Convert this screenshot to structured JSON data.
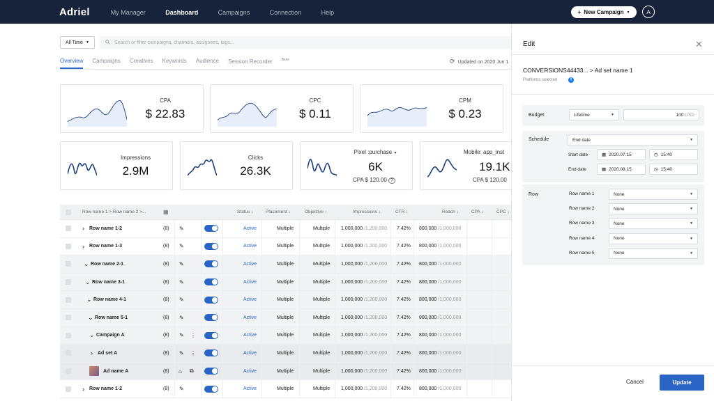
{
  "app": {
    "logo": "Adriel",
    "nav": [
      "My Manager",
      "Dashboard",
      "Campaigns",
      "Connection",
      "Help"
    ],
    "new_campaign": "New Campaign",
    "avatar": "A"
  },
  "filters": {
    "time": "All Time",
    "search_placeholder": "Search or filter campaigns, channels, assignees, tags..."
  },
  "tabs": [
    "Overview",
    "Campaigns",
    "Creatives",
    "Keywords",
    "Audience",
    "Session Recorder"
  ],
  "tab_beta": "Beta",
  "updated": "Updated on 2020 Jun 1",
  "metrics_top": [
    {
      "label": "CPA",
      "value": "$ 22.83"
    },
    {
      "label": "CPC",
      "value": "$ 0.11"
    },
    {
      "label": "CPM",
      "value": "$ 0.23"
    }
  ],
  "metrics_bottom": [
    {
      "label": "Impressions",
      "value": "2.9M"
    },
    {
      "label": "Clicks",
      "value": "26.3K"
    },
    {
      "label": "Pixel :purchase",
      "value": "6K",
      "sub": "CPA  $ 120.00"
    },
    {
      "label": "Mobile: app_inst",
      "value": "19.1K",
      "sub": "CPA  $ 120.00"
    }
  ],
  "table": {
    "header": {
      "name": "Row name 1 > Row name 2 >...",
      "status": "Status",
      "placement": "Placement",
      "objective": "Objective",
      "impressions": "Impressions",
      "ctr": "CTR",
      "reach": "Reach",
      "cpa": "CPA",
      "cpc": "CPC"
    },
    "rows": [
      {
        "name": "Row name 1-2",
        "count": "(8)",
        "status": "Active",
        "placement": "Multiple",
        "objective": "Multiple",
        "imp": "1,000,000",
        "imp_total": "/1,200,000",
        "ctr": "7.42%",
        "reach": "800,000",
        "reach_total": "/1,000,000"
      },
      {
        "name": "Row name 1-3",
        "count": "(8)",
        "status": "Active",
        "placement": "Multiple",
        "objective": "Multiple",
        "imp": "1,000,000",
        "imp_total": "/1,200,000",
        "ctr": "7.42%",
        "reach": "800,000",
        "reach_total": "/1,000,000"
      },
      {
        "name": "Row name 2-1",
        "count": "(8)",
        "status": "Active",
        "placement": "Multiple",
        "objective": "Multiple",
        "imp": "1,000,000",
        "imp_total": "/1,200,000",
        "ctr": "7.42%",
        "reach": "800,000",
        "reach_total": "/1,000,000"
      },
      {
        "name": "Row name 3-1",
        "count": "(8)",
        "status": "Active",
        "placement": "Multiple",
        "objective": "Multiple",
        "imp": "1,000,000",
        "imp_total": "/1,200,000",
        "ctr": "7.42%",
        "reach": "800,000",
        "reach_total": "/1,000,000"
      },
      {
        "name": "Row name 4-1",
        "count": "(8)",
        "status": "Active",
        "placement": "Multiple",
        "objective": "Multiple",
        "imp": "1,000,000",
        "imp_total": "/1,200,000",
        "ctr": "7.42%",
        "reach": "800,000",
        "reach_total": "/1,000,000"
      },
      {
        "name": "Row name 5-1",
        "count": "(8)",
        "status": "Active",
        "placement": "Multiple",
        "objective": "Multiple",
        "imp": "1,000,000",
        "imp_total": "/1,200,000",
        "ctr": "7.42%",
        "reach": "800,000",
        "reach_total": "/1,000,000"
      },
      {
        "name": "Campaign A",
        "count": "(8)",
        "status": "Active",
        "placement": "Multiple",
        "objective": "Multiple",
        "imp": "1,000,000",
        "imp_total": "/1,200,000",
        "ctr": "7.42%",
        "reach": "800,000",
        "reach_total": "/1,000,000"
      },
      {
        "name": "Ad set A",
        "count": "(8)",
        "status": "Active",
        "placement": "Multiple",
        "objective": "Multiple",
        "imp": "1,000,000",
        "imp_total": "/1,200,000",
        "ctr": "7.42%",
        "reach": "800,000",
        "reach_total": "/1,000,000"
      },
      {
        "name": "Ad name A",
        "count": "(8)",
        "status": "Active",
        "placement": "Multiple",
        "objective": "Multiple",
        "imp": "1,000,000",
        "imp_total": "/1,200,000",
        "ctr": "7.42%",
        "reach": "800,000",
        "reach_total": "/1,000,000"
      },
      {
        "name": "Row name 1-2",
        "count": "(8)",
        "status": "Active",
        "placement": "Multiple",
        "objective": "Multiple",
        "imp": "1,000,000",
        "imp_total": "/1,200,000",
        "ctr": "7.42%",
        "reach": "800,000",
        "reach_total": "/1,000,000"
      }
    ]
  },
  "edit": {
    "title": "Edit",
    "breadcrumb": "CONVERSIONS44433... > Ad set name 1",
    "platforms": "Platforms selected",
    "budget_label": "Budget",
    "budget_type": "Lifetime",
    "budget_value": "100",
    "budget_unit": "USD",
    "schedule_label": "Schedule",
    "schedule_type": "End date",
    "start_label": "Start date",
    "start_date": "2020.07.15",
    "start_time": "15:40",
    "end_label": "End date",
    "end_date": "2020.08.15",
    "end_time": "15:40",
    "row_label": "Row",
    "rows": [
      {
        "label": "Row name 1",
        "value": "None"
      },
      {
        "label": "Row name 2",
        "value": "None"
      },
      {
        "label": "Row name 3",
        "value": "None"
      },
      {
        "label": "Row name 4",
        "value": "None"
      },
      {
        "label": "Row name 5",
        "value": "None"
      }
    ],
    "cancel": "Cancel",
    "update": "Update"
  },
  "colors": {
    "primary": "#2a64c5",
    "topbar": "#16233a"
  }
}
